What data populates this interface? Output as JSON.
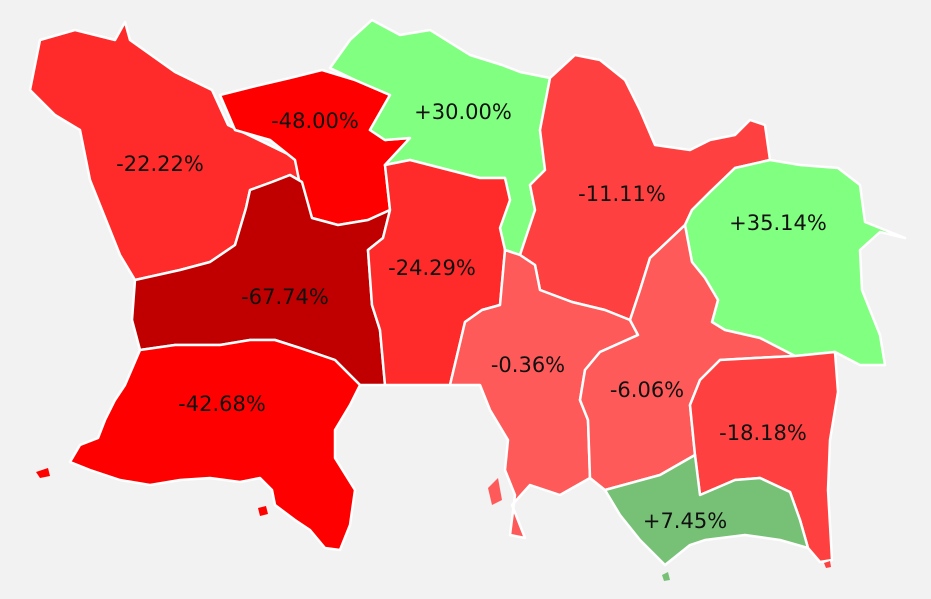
{
  "map": {
    "parishes": [
      {
        "id": "st-ouen",
        "label": "-22.22%",
        "color": "#ff2a2a"
      },
      {
        "id": "st-mary",
        "label": "-48.00%",
        "color": "#ff0000"
      },
      {
        "id": "trinity",
        "label": "+30.00%",
        "color": "#80ff80"
      },
      {
        "id": "st-martin",
        "label": "-11.11%",
        "color": "#ff4040"
      },
      {
        "id": "st-john",
        "label": "-67.74%",
        "color": "#c00000"
      },
      {
        "id": "st-lawrence",
        "label": "-24.29%",
        "color": "#ff2a2a"
      },
      {
        "id": "grouville",
        "label": "+35.14%",
        "color": "#80ff80"
      },
      {
        "id": "st-helier",
        "label": "-0.36%",
        "color": "#ff5a5a"
      },
      {
        "id": "st-saviour",
        "label": "-6.06%",
        "color": "#ff5a5a"
      },
      {
        "id": "st-brelade",
        "label": "-42.68%",
        "color": "#ff0000"
      },
      {
        "id": "st-clement",
        "label": "-18.18%",
        "color": "#ff4040"
      },
      {
        "id": "st-peter",
        "label": "+7.45%",
        "color": "#77c177"
      }
    ]
  }
}
